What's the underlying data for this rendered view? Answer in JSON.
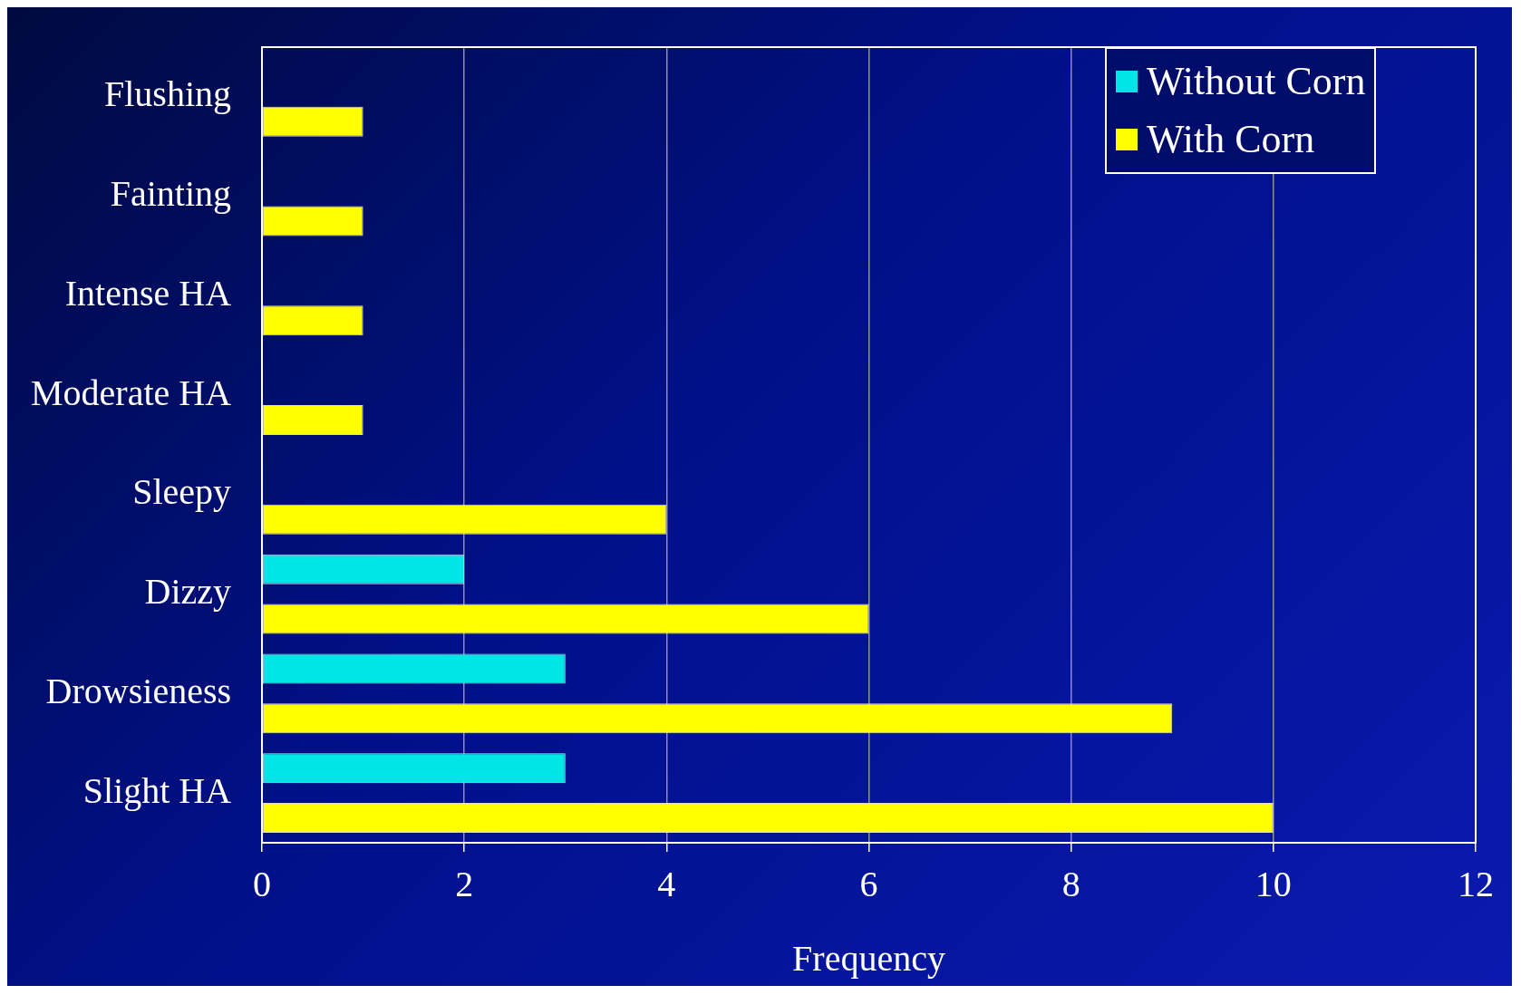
{
  "chart_data": {
    "type": "bar",
    "orientation": "horizontal",
    "xlabel": "Frequency",
    "categories": [
      "Flushing",
      "Fainting",
      "Intense HA",
      "Moderate HA",
      "Sleepy",
      "Dizzy",
      "Drowsieness",
      "Slight HA"
    ],
    "series": [
      {
        "name": "Without Corn",
        "color": "#00e6e6",
        "values": [
          null,
          null,
          null,
          null,
          null,
          2,
          3,
          3
        ]
      },
      {
        "name": "With Corn",
        "color": "#ffff00",
        "values": [
          1,
          1,
          1,
          1,
          4,
          6,
          9,
          10
        ]
      }
    ],
    "xlim": [
      0,
      12
    ],
    "xticks": [
      0,
      2,
      4,
      6,
      8,
      10,
      12
    ],
    "grid": "x",
    "legend": "top right"
  }
}
